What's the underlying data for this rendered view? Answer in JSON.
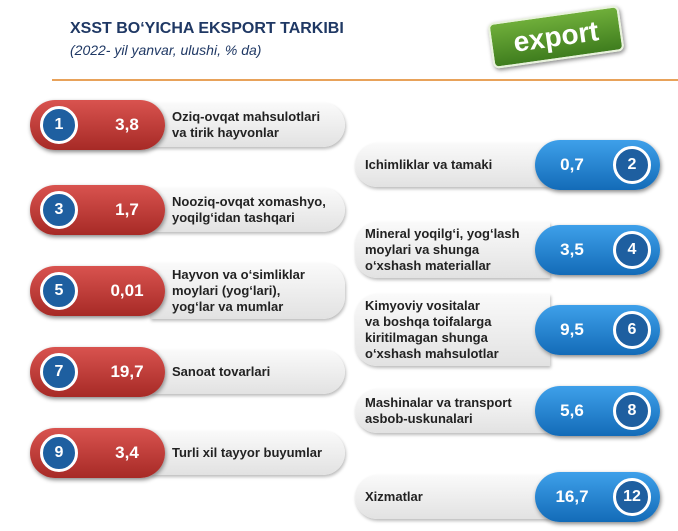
{
  "header": {
    "title": "XSST BO‘YICHA EKSPORT TARKIBI",
    "subtitle": "(2022- yil yanvar, ulushi, % da)",
    "logo": "export"
  },
  "items": [
    {
      "number": "1",
      "value": "3,8",
      "label": [
        "Oziq-ovqat mahsulotlari",
        "va tirik hayvonlar"
      ]
    },
    {
      "number": "2",
      "value": "0,7",
      "label": [
        "Ichimliklar va tamaki"
      ]
    },
    {
      "number": "3",
      "value": "1,7",
      "label": [
        "Nooziq-ovqat xomashyo,",
        "yoqilg‘idan tashqari"
      ]
    },
    {
      "number": "4",
      "value": "3,5",
      "label": [
        "Mineral yoqilg‘i, yog‘lash",
        "moylari va shunga",
        "o‘xshash materiallar"
      ]
    },
    {
      "number": "5",
      "value": "0,01",
      "label": [
        "Hayvon va o‘simliklar",
        "moylari (yog‘lari),",
        "yog‘lar va mumlar"
      ]
    },
    {
      "number": "6",
      "value": "9,5",
      "label": [
        "Kimyoviy vositalar",
        "va boshqa toifalarga",
        "kiritilmagan shunga",
        "o‘xshash mahsulotlar"
      ]
    },
    {
      "number": "7",
      "value": "19,7",
      "label": [
        "Sanoat tovarlari"
      ]
    },
    {
      "number": "8",
      "value": "5,6",
      "label": [
        "Mashinalar va transport",
        "asbob-uskunalari"
      ]
    },
    {
      "number": "9",
      "value": "3,4",
      "label": [
        "Turli xil tayyor buyumlar"
      ]
    },
    {
      "number": "12",
      "value": "16,7",
      "label": [
        "Xizmatlar"
      ]
    }
  ]
}
